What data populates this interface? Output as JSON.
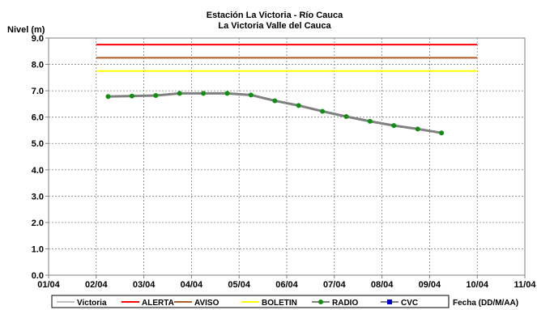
{
  "chart_data": {
    "type": "line",
    "title": "Estación La Victoria - Río Cauca",
    "subtitle": "La Victoria Valle del Cauca",
    "ylabel": "Nivel (m)",
    "xlabel": "Fecha (DD/M/AA)",
    "ylim": [
      0,
      9
    ],
    "yticks": [
      "0.0",
      "1.0",
      "2.0",
      "3.0",
      "4.0",
      "5.0",
      "6.0",
      "7.0",
      "8.0",
      "9.0"
    ],
    "xlim": [
      0,
      10
    ],
    "xticks": [
      "01/04",
      "02/04",
      "03/04",
      "04/04",
      "05/04",
      "06/04",
      "07/04",
      "08/04",
      "09/04",
      "10/04",
      "11/04"
    ],
    "grid": true,
    "legend_placement": "bottom",
    "thresholds": [
      {
        "name": "ALERTA",
        "value": 8.75,
        "x": [
          1.0,
          9.0
        ],
        "color": "#ff0000"
      },
      {
        "name": "AVISO",
        "value": 8.25,
        "x": [
          1.0,
          9.0
        ],
        "color": "#b05e26"
      },
      {
        "name": "BOLETIN",
        "value": 7.75,
        "x": [
          1.0,
          9.0
        ],
        "color": "#ffff00"
      }
    ],
    "series": [
      {
        "name": "RADIO",
        "color": "#808080",
        "marker_color": "#109010",
        "x": [
          1.25,
          1.75,
          2.25,
          2.75,
          3.25,
          3.75,
          4.25,
          4.75,
          5.25,
          5.75,
          6.25,
          6.75,
          7.25,
          7.75,
          8.25
        ],
        "values": [
          6.78,
          6.8,
          6.82,
          6.9,
          6.9,
          6.9,
          6.84,
          6.62,
          6.44,
          6.22,
          6.02,
          5.84,
          5.68,
          5.55,
          5.4
        ]
      }
    ],
    "legend": [
      {
        "label": "Victoria",
        "color": "#c0c0c0",
        "marker": "none"
      },
      {
        "label": "ALERTA",
        "color": "#ff0000",
        "marker": "none"
      },
      {
        "label": "AVISO",
        "color": "#b05e26",
        "marker": "none"
      },
      {
        "label": "BOLETIN",
        "color": "#ffff00",
        "marker": "none"
      },
      {
        "label": "RADIO",
        "color": "#808080",
        "marker": "circle",
        "marker_color": "#109010"
      },
      {
        "label": "CVC",
        "color": "#808080",
        "marker": "square",
        "marker_color": "#0000cc"
      }
    ]
  }
}
